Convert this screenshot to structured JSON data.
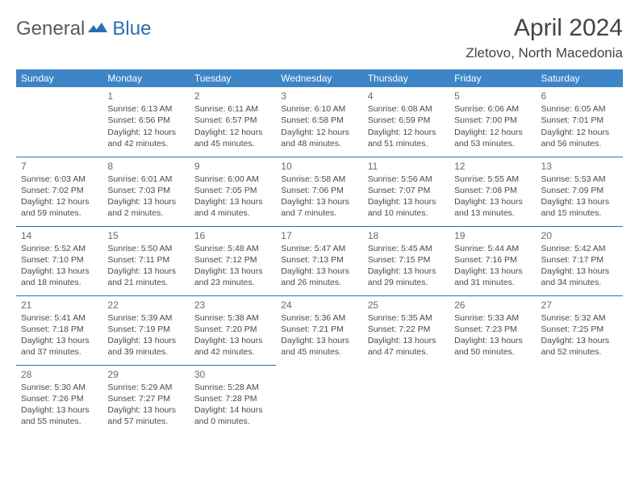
{
  "brand": {
    "part1": "General",
    "part2": "Blue"
  },
  "title": "April 2024",
  "location": "Zletovo, North Macedonia",
  "colors": {
    "header_bg": "#3d85c6",
    "rule": "#2a6fb5",
    "text": "#4a4a4a",
    "daynum": "#6a6a6a"
  },
  "day_names": [
    "Sunday",
    "Monday",
    "Tuesday",
    "Wednesday",
    "Thursday",
    "Friday",
    "Saturday"
  ],
  "weeks": [
    [
      null,
      {
        "n": "1",
        "sr": "Sunrise: 6:13 AM",
        "ss": "Sunset: 6:56 PM",
        "d1": "Daylight: 12 hours",
        "d2": "and 42 minutes."
      },
      {
        "n": "2",
        "sr": "Sunrise: 6:11 AM",
        "ss": "Sunset: 6:57 PM",
        "d1": "Daylight: 12 hours",
        "d2": "and 45 minutes."
      },
      {
        "n": "3",
        "sr": "Sunrise: 6:10 AM",
        "ss": "Sunset: 6:58 PM",
        "d1": "Daylight: 12 hours",
        "d2": "and 48 minutes."
      },
      {
        "n": "4",
        "sr": "Sunrise: 6:08 AM",
        "ss": "Sunset: 6:59 PM",
        "d1": "Daylight: 12 hours",
        "d2": "and 51 minutes."
      },
      {
        "n": "5",
        "sr": "Sunrise: 6:06 AM",
        "ss": "Sunset: 7:00 PM",
        "d1": "Daylight: 12 hours",
        "d2": "and 53 minutes."
      },
      {
        "n": "6",
        "sr": "Sunrise: 6:05 AM",
        "ss": "Sunset: 7:01 PM",
        "d1": "Daylight: 12 hours",
        "d2": "and 56 minutes."
      }
    ],
    [
      {
        "n": "7",
        "sr": "Sunrise: 6:03 AM",
        "ss": "Sunset: 7:02 PM",
        "d1": "Daylight: 12 hours",
        "d2": "and 59 minutes."
      },
      {
        "n": "8",
        "sr": "Sunrise: 6:01 AM",
        "ss": "Sunset: 7:03 PM",
        "d1": "Daylight: 13 hours",
        "d2": "and 2 minutes."
      },
      {
        "n": "9",
        "sr": "Sunrise: 6:00 AM",
        "ss": "Sunset: 7:05 PM",
        "d1": "Daylight: 13 hours",
        "d2": "and 4 minutes."
      },
      {
        "n": "10",
        "sr": "Sunrise: 5:58 AM",
        "ss": "Sunset: 7:06 PM",
        "d1": "Daylight: 13 hours",
        "d2": "and 7 minutes."
      },
      {
        "n": "11",
        "sr": "Sunrise: 5:56 AM",
        "ss": "Sunset: 7:07 PM",
        "d1": "Daylight: 13 hours",
        "d2": "and 10 minutes."
      },
      {
        "n": "12",
        "sr": "Sunrise: 5:55 AM",
        "ss": "Sunset: 7:08 PM",
        "d1": "Daylight: 13 hours",
        "d2": "and 13 minutes."
      },
      {
        "n": "13",
        "sr": "Sunrise: 5:53 AM",
        "ss": "Sunset: 7:09 PM",
        "d1": "Daylight: 13 hours",
        "d2": "and 15 minutes."
      }
    ],
    [
      {
        "n": "14",
        "sr": "Sunrise: 5:52 AM",
        "ss": "Sunset: 7:10 PM",
        "d1": "Daylight: 13 hours",
        "d2": "and 18 minutes."
      },
      {
        "n": "15",
        "sr": "Sunrise: 5:50 AM",
        "ss": "Sunset: 7:11 PM",
        "d1": "Daylight: 13 hours",
        "d2": "and 21 minutes."
      },
      {
        "n": "16",
        "sr": "Sunrise: 5:48 AM",
        "ss": "Sunset: 7:12 PM",
        "d1": "Daylight: 13 hours",
        "d2": "and 23 minutes."
      },
      {
        "n": "17",
        "sr": "Sunrise: 5:47 AM",
        "ss": "Sunset: 7:13 PM",
        "d1": "Daylight: 13 hours",
        "d2": "and 26 minutes."
      },
      {
        "n": "18",
        "sr": "Sunrise: 5:45 AM",
        "ss": "Sunset: 7:15 PM",
        "d1": "Daylight: 13 hours",
        "d2": "and 29 minutes."
      },
      {
        "n": "19",
        "sr": "Sunrise: 5:44 AM",
        "ss": "Sunset: 7:16 PM",
        "d1": "Daylight: 13 hours",
        "d2": "and 31 minutes."
      },
      {
        "n": "20",
        "sr": "Sunrise: 5:42 AM",
        "ss": "Sunset: 7:17 PM",
        "d1": "Daylight: 13 hours",
        "d2": "and 34 minutes."
      }
    ],
    [
      {
        "n": "21",
        "sr": "Sunrise: 5:41 AM",
        "ss": "Sunset: 7:18 PM",
        "d1": "Daylight: 13 hours",
        "d2": "and 37 minutes."
      },
      {
        "n": "22",
        "sr": "Sunrise: 5:39 AM",
        "ss": "Sunset: 7:19 PM",
        "d1": "Daylight: 13 hours",
        "d2": "and 39 minutes."
      },
      {
        "n": "23",
        "sr": "Sunrise: 5:38 AM",
        "ss": "Sunset: 7:20 PM",
        "d1": "Daylight: 13 hours",
        "d2": "and 42 minutes."
      },
      {
        "n": "24",
        "sr": "Sunrise: 5:36 AM",
        "ss": "Sunset: 7:21 PM",
        "d1": "Daylight: 13 hours",
        "d2": "and 45 minutes."
      },
      {
        "n": "25",
        "sr": "Sunrise: 5:35 AM",
        "ss": "Sunset: 7:22 PM",
        "d1": "Daylight: 13 hours",
        "d2": "and 47 minutes."
      },
      {
        "n": "26",
        "sr": "Sunrise: 5:33 AM",
        "ss": "Sunset: 7:23 PM",
        "d1": "Daylight: 13 hours",
        "d2": "and 50 minutes."
      },
      {
        "n": "27",
        "sr": "Sunrise: 5:32 AM",
        "ss": "Sunset: 7:25 PM",
        "d1": "Daylight: 13 hours",
        "d2": "and 52 minutes."
      }
    ],
    [
      {
        "n": "28",
        "sr": "Sunrise: 5:30 AM",
        "ss": "Sunset: 7:26 PM",
        "d1": "Daylight: 13 hours",
        "d2": "and 55 minutes."
      },
      {
        "n": "29",
        "sr": "Sunrise: 5:29 AM",
        "ss": "Sunset: 7:27 PM",
        "d1": "Daylight: 13 hours",
        "d2": "and 57 minutes."
      },
      {
        "n": "30",
        "sr": "Sunrise: 5:28 AM",
        "ss": "Sunset: 7:28 PM",
        "d1": "Daylight: 14 hours",
        "d2": "and 0 minutes."
      },
      null,
      null,
      null,
      null
    ]
  ]
}
